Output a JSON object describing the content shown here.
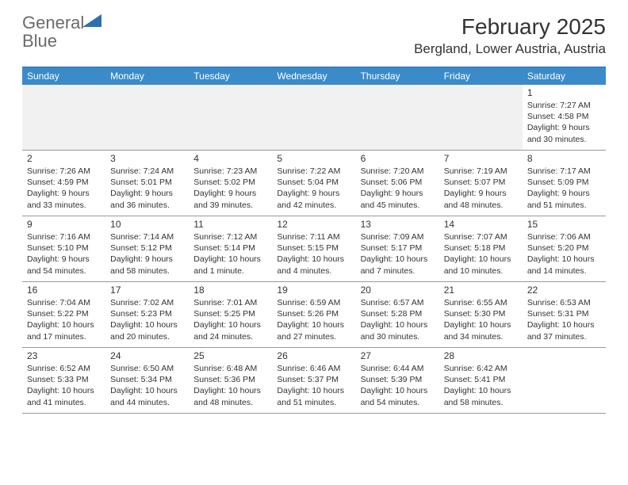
{
  "brand": {
    "name_part1": "General",
    "name_part2": "Blue",
    "icon_color": "#2f6fb0",
    "text_color_gray": "#6a6a6a"
  },
  "title": "February 2025",
  "location": "Bergland, Lower Austria, Austria",
  "colors": {
    "header_bg": "#3b8bc9",
    "header_text": "#ffffff",
    "border": "#999999",
    "top_border": "#2f6fb0",
    "empty_bg": "#f1f1f1",
    "page_bg": "#ffffff",
    "text": "#333333"
  },
  "day_names": [
    "Sunday",
    "Monday",
    "Tuesday",
    "Wednesday",
    "Thursday",
    "Friday",
    "Saturday"
  ],
  "weeks": [
    [
      {
        "n": "",
        "sr": "",
        "ss": "",
        "dl": ""
      },
      {
        "n": "",
        "sr": "",
        "ss": "",
        "dl": ""
      },
      {
        "n": "",
        "sr": "",
        "ss": "",
        "dl": ""
      },
      {
        "n": "",
        "sr": "",
        "ss": "",
        "dl": ""
      },
      {
        "n": "",
        "sr": "",
        "ss": "",
        "dl": ""
      },
      {
        "n": "",
        "sr": "",
        "ss": "",
        "dl": ""
      },
      {
        "n": "1",
        "sr": "Sunrise: 7:27 AM",
        "ss": "Sunset: 4:58 PM",
        "dl": "Daylight: 9 hours and 30 minutes."
      }
    ],
    [
      {
        "n": "2",
        "sr": "Sunrise: 7:26 AM",
        "ss": "Sunset: 4:59 PM",
        "dl": "Daylight: 9 hours and 33 minutes."
      },
      {
        "n": "3",
        "sr": "Sunrise: 7:24 AM",
        "ss": "Sunset: 5:01 PM",
        "dl": "Daylight: 9 hours and 36 minutes."
      },
      {
        "n": "4",
        "sr": "Sunrise: 7:23 AM",
        "ss": "Sunset: 5:02 PM",
        "dl": "Daylight: 9 hours and 39 minutes."
      },
      {
        "n": "5",
        "sr": "Sunrise: 7:22 AM",
        "ss": "Sunset: 5:04 PM",
        "dl": "Daylight: 9 hours and 42 minutes."
      },
      {
        "n": "6",
        "sr": "Sunrise: 7:20 AM",
        "ss": "Sunset: 5:06 PM",
        "dl": "Daylight: 9 hours and 45 minutes."
      },
      {
        "n": "7",
        "sr": "Sunrise: 7:19 AM",
        "ss": "Sunset: 5:07 PM",
        "dl": "Daylight: 9 hours and 48 minutes."
      },
      {
        "n": "8",
        "sr": "Sunrise: 7:17 AM",
        "ss": "Sunset: 5:09 PM",
        "dl": "Daylight: 9 hours and 51 minutes."
      }
    ],
    [
      {
        "n": "9",
        "sr": "Sunrise: 7:16 AM",
        "ss": "Sunset: 5:10 PM",
        "dl": "Daylight: 9 hours and 54 minutes."
      },
      {
        "n": "10",
        "sr": "Sunrise: 7:14 AM",
        "ss": "Sunset: 5:12 PM",
        "dl": "Daylight: 9 hours and 58 minutes."
      },
      {
        "n": "11",
        "sr": "Sunrise: 7:12 AM",
        "ss": "Sunset: 5:14 PM",
        "dl": "Daylight: 10 hours and 1 minute."
      },
      {
        "n": "12",
        "sr": "Sunrise: 7:11 AM",
        "ss": "Sunset: 5:15 PM",
        "dl": "Daylight: 10 hours and 4 minutes."
      },
      {
        "n": "13",
        "sr": "Sunrise: 7:09 AM",
        "ss": "Sunset: 5:17 PM",
        "dl": "Daylight: 10 hours and 7 minutes."
      },
      {
        "n": "14",
        "sr": "Sunrise: 7:07 AM",
        "ss": "Sunset: 5:18 PM",
        "dl": "Daylight: 10 hours and 10 minutes."
      },
      {
        "n": "15",
        "sr": "Sunrise: 7:06 AM",
        "ss": "Sunset: 5:20 PM",
        "dl": "Daylight: 10 hours and 14 minutes."
      }
    ],
    [
      {
        "n": "16",
        "sr": "Sunrise: 7:04 AM",
        "ss": "Sunset: 5:22 PM",
        "dl": "Daylight: 10 hours and 17 minutes."
      },
      {
        "n": "17",
        "sr": "Sunrise: 7:02 AM",
        "ss": "Sunset: 5:23 PM",
        "dl": "Daylight: 10 hours and 20 minutes."
      },
      {
        "n": "18",
        "sr": "Sunrise: 7:01 AM",
        "ss": "Sunset: 5:25 PM",
        "dl": "Daylight: 10 hours and 24 minutes."
      },
      {
        "n": "19",
        "sr": "Sunrise: 6:59 AM",
        "ss": "Sunset: 5:26 PM",
        "dl": "Daylight: 10 hours and 27 minutes."
      },
      {
        "n": "20",
        "sr": "Sunrise: 6:57 AM",
        "ss": "Sunset: 5:28 PM",
        "dl": "Daylight: 10 hours and 30 minutes."
      },
      {
        "n": "21",
        "sr": "Sunrise: 6:55 AM",
        "ss": "Sunset: 5:30 PM",
        "dl": "Daylight: 10 hours and 34 minutes."
      },
      {
        "n": "22",
        "sr": "Sunrise: 6:53 AM",
        "ss": "Sunset: 5:31 PM",
        "dl": "Daylight: 10 hours and 37 minutes."
      }
    ],
    [
      {
        "n": "23",
        "sr": "Sunrise: 6:52 AM",
        "ss": "Sunset: 5:33 PM",
        "dl": "Daylight: 10 hours and 41 minutes."
      },
      {
        "n": "24",
        "sr": "Sunrise: 6:50 AM",
        "ss": "Sunset: 5:34 PM",
        "dl": "Daylight: 10 hours and 44 minutes."
      },
      {
        "n": "25",
        "sr": "Sunrise: 6:48 AM",
        "ss": "Sunset: 5:36 PM",
        "dl": "Daylight: 10 hours and 48 minutes."
      },
      {
        "n": "26",
        "sr": "Sunrise: 6:46 AM",
        "ss": "Sunset: 5:37 PM",
        "dl": "Daylight: 10 hours and 51 minutes."
      },
      {
        "n": "27",
        "sr": "Sunrise: 6:44 AM",
        "ss": "Sunset: 5:39 PM",
        "dl": "Daylight: 10 hours and 54 minutes."
      },
      {
        "n": "28",
        "sr": "Sunrise: 6:42 AM",
        "ss": "Sunset: 5:41 PM",
        "dl": "Daylight: 10 hours and 58 minutes."
      },
      {
        "n": "",
        "sr": "",
        "ss": "",
        "dl": ""
      }
    ]
  ]
}
